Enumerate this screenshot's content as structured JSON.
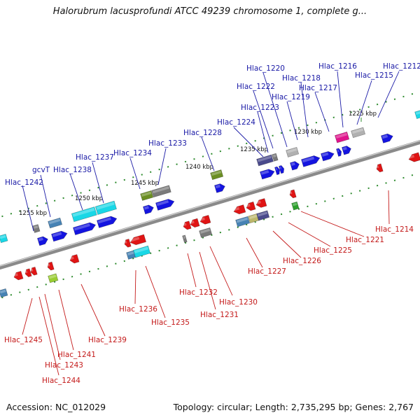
{
  "title": "Halorubrum lacusprofundi ATCC 49239 chromosome 1, complete g...",
  "footer": {
    "accession": "Accession: NC_012029",
    "summary": "Topology: circular; Length: 2,735,295 bp; Genes: 2,767"
  },
  "ruler_labels": [
    "1225 kbp",
    "1230 kbp",
    "1235 kbp",
    "1240 kbp",
    "1245 kbp",
    "1250 kbp",
    "1255 kbp"
  ],
  "genes_forward": [
    "Hlac_1212",
    "Hlac_1215",
    "Hlac_1216",
    "Hlac_1217",
    "Hlac_1218",
    "Hlac_1219",
    "Hlac_1220",
    "Hlac_1222",
    "Hlac_1223",
    "Hlac_1224",
    "Hlac_1228",
    "Hlac_1233",
    "Hlac_1234",
    "Hlac_1237",
    "Hlac_1238",
    "gcvT",
    "Hlac_1242"
  ],
  "genes_reverse": [
    "Hlac_1214",
    "Hlac_1221",
    "Hlac_1225",
    "Hlac_1226",
    "Hlac_1227",
    "Hlac_1230",
    "Hlac_1231",
    "Hlac_1232",
    "Hlac_1235",
    "Hlac_1236",
    "Hlac_1239",
    "Hlac_1241",
    "Hlac_1243",
    "Hlac_1244",
    "Hlac_1245"
  ],
  "colors": {
    "forward_label": "#1a1aa6",
    "reverse_label": "#c41a1a",
    "forward_gene": "#1414e0",
    "reverse_gene": "#e01414",
    "backbone": "#888888",
    "tick": "#2e8b2e",
    "gene_cyan": "#19d7e6",
    "gene_olive": "#6b8e23",
    "gene_slate": "#4a4a8c",
    "gene_gray": "#7a7a7a",
    "gene_magenta": "#e0148c",
    "gene_steel": "#4682b4",
    "gene_khaki": "#bdb76b",
    "gene_lime": "#9acd32",
    "gene_green": "#2ca02c",
    "gene_silver": "#b0b0b0"
  }
}
